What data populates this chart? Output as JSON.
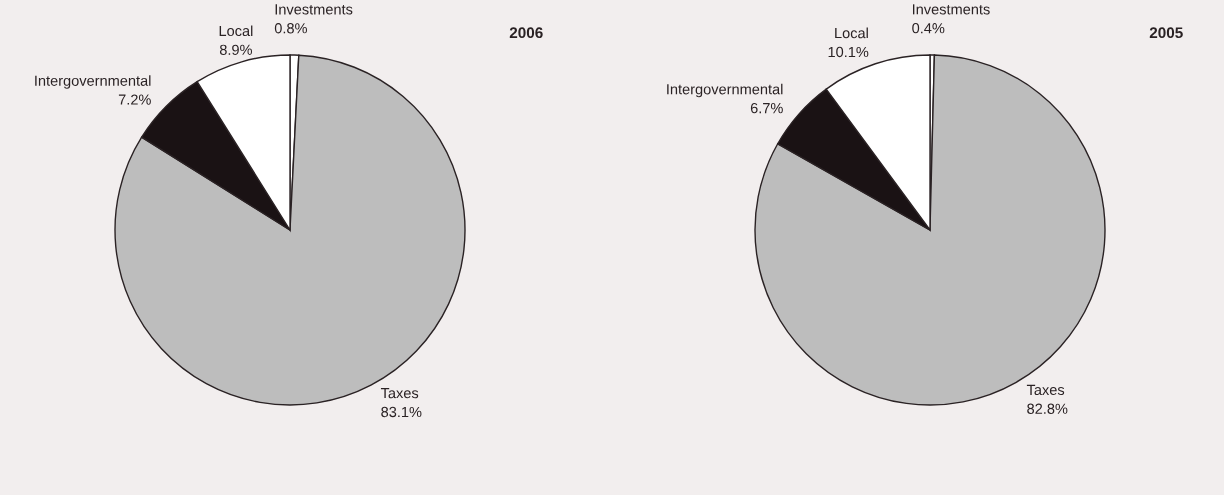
{
  "chart_data": [
    {
      "type": "pie",
      "title": "2006",
      "categories": [
        "Investments",
        "Taxes",
        "Intergovernmental",
        "Local"
      ],
      "values": [
        0.8,
        83.1,
        7.2,
        8.9
      ],
      "value_labels": [
        "0.8%",
        "83.1%",
        "7.2%",
        "8.9%"
      ],
      "colors": [
        "#ffffff",
        "#bdbdbd",
        "#1a1214",
        "#ffffff"
      ]
    },
    {
      "type": "pie",
      "title": "2005",
      "categories": [
        "Investments",
        "Taxes",
        "Intergovernmental",
        "Local"
      ],
      "values": [
        0.4,
        82.8,
        6.7,
        10.1
      ],
      "value_labels": [
        "0.4%",
        "82.8%",
        "6.7%",
        "10.1%"
      ],
      "colors": [
        "#ffffff",
        "#bdbdbd",
        "#1a1214",
        "#ffffff"
      ]
    }
  ]
}
